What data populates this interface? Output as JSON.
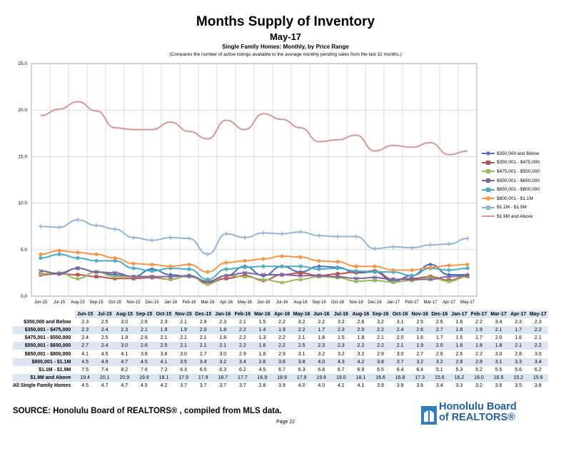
{
  "header": {
    "title": "Months Supply of Inventory",
    "subtitle": "May-17",
    "subtitle2": "Single Family Homes: Monthly, by Price Range",
    "note": "(Compares the number of active listings available to the average monthly pending sales from the last 12 months.)"
  },
  "footer": {
    "source": "SOURCE:  Honolulu Board of REALTORS® , compiled from MLS data.",
    "page": "Page 22",
    "logo_line1": "Honolulu Board",
    "logo_line2": "of REALTORS®"
  },
  "chart_data": {
    "type": "line",
    "title": "Months Supply of Inventory",
    "subtitle": "May-17",
    "ylim": [
      0,
      25
    ],
    "yticks": [
      "0.0",
      "5.0",
      "10.0",
      "15.0",
      "20.0",
      "25.0"
    ],
    "grid": true,
    "legend_position": "right",
    "categories": [
      "Jun-15",
      "Jul-15",
      "Aug-15",
      "Sep-15",
      "Oct-15",
      "Nov-15",
      "Dec-15",
      "Jan-16",
      "Feb-16",
      "Mar-16",
      "Apr-16",
      "May-16",
      "Jun-16",
      "Jul-16",
      "Aug-16",
      "Sep-16",
      "Oct-16",
      "Nov-16",
      "Dec-16",
      "Jan-17",
      "Feb-17",
      "Mar-17",
      "Apr-17",
      "May-17"
    ],
    "series": [
      {
        "name": "$350,000 and Below",
        "label": "$350,000 and Below",
        "color": "#4472c4",
        "marker": "diamond",
        "values": [
          2.3,
          2.5,
          3.0,
          2.6,
          2.3,
          2.1,
          2.9,
          2.3,
          2.1,
          1.5,
          2.2,
          3.2,
          2.2,
          3.2,
          2.6,
          3.2,
          3.1,
          2.5,
          2.6,
          1.6,
          2.2,
          3.4,
          2.3,
          2.3
        ]
      },
      {
        "name": "$350,001 - $475,000",
        "label": "$350,001 - $475,000",
        "color": "#c0504d",
        "marker": "square",
        "values": [
          2.3,
          2.4,
          2.3,
          2.1,
          1.9,
          1.9,
          2.0,
          1.8,
          2.2,
          1.4,
          1.9,
          2.2,
          1.7,
          2.3,
          2.5,
          2.2,
          2.4,
          2.6,
          2.7,
          1.8,
          1.9,
          2.1,
          1.7,
          2.2
        ]
      },
      {
        "name": "$475,001 - $550,000",
        "label": "$475,001 - $550,000",
        "color": "#9bbb59",
        "marker": "triangle",
        "values": [
          2.4,
          2.5,
          1.9,
          2.6,
          2.1,
          2.1,
          2.1,
          1.8,
          2.2,
          1.3,
          2.2,
          2.1,
          1.8,
          1.5,
          1.8,
          2.1,
          2.0,
          1.6,
          1.7,
          1.5,
          1.7,
          2.0,
          1.6,
          2.1
        ]
      },
      {
        "name": "$550,001 - $650,000",
        "label": "$550,001 - $650,000",
        "color": "#8064a2",
        "marker": "x",
        "values": [
          2.7,
          2.4,
          3.0,
          2.6,
          2.5,
          2.1,
          2.1,
          2.1,
          2.2,
          1.6,
          2.2,
          2.5,
          2.3,
          2.3,
          2.2,
          2.2,
          2.1,
          1.9,
          2.0,
          1.8,
          1.8,
          1.8,
          2.1,
          2.2
        ]
      },
      {
        "name": "$650,001 - $800,000",
        "label": "$650,001 - $800,000",
        "color": "#4bacc6",
        "marker": "star",
        "values": [
          4.1,
          4.5,
          4.1,
          3.8,
          3.8,
          3.0,
          2.7,
          3.0,
          2.9,
          1.8,
          2.9,
          3.1,
          3.2,
          3.2,
          3.2,
          2.9,
          3.0,
          2.7,
          2.6,
          2.6,
          2.2,
          3.0,
          2.8,
          3.0
        ]
      },
      {
        "name": "$800,001 - $1.1M",
        "label": "$800,001 - $1.1M",
        "color": "#f79646",
        "marker": "circle",
        "values": [
          4.5,
          4.9,
          4.7,
          4.5,
          4.1,
          3.5,
          3.4,
          3.2,
          3.4,
          2.6,
          3.6,
          3.8,
          4.0,
          4.3,
          4.2,
          3.8,
          3.7,
          3.2,
          3.2,
          2.8,
          2.8,
          3.1,
          3.3,
          3.4
        ]
      },
      {
        "name": "$1.1M - $1.9M",
        "label": "$1.1M - $1.9M",
        "color": "#95b3d7",
        "marker": "plus",
        "values": [
          7.5,
          7.4,
          8.2,
          7.6,
          7.2,
          6.3,
          6.0,
          6.3,
          6.2,
          4.5,
          6.7,
          6.3,
          6.8,
          6.7,
          6.9,
          6.5,
          6.4,
          6.4,
          5.1,
          5.3,
          5.2,
          5.5,
          5.6,
          6.2
        ]
      },
      {
        "name": "$1.9M and Above",
        "label": "$1.9M and Above",
        "color": "#d99694",
        "marker": "none",
        "values": [
          19.4,
          20.1,
          20.9,
          19.9,
          18.1,
          17.9,
          17.9,
          18.7,
          17.7,
          16.9,
          18.9,
          17.9,
          19.6,
          19.0,
          18.1,
          16.6,
          16.8,
          17.3,
          15.6,
          16.2,
          16.0,
          16.5,
          15.2,
          15.6
        ]
      }
    ],
    "table": {
      "headers": [
        "Jun-15",
        "Jul-15",
        "Aug-15",
        "Sep-15",
        "Oct-15",
        "Nov-15",
        "Dec-15",
        "Jan-16",
        "Feb-16",
        "Mar-16",
        "Apr-16",
        "May-16",
        "Jun-16",
        "Jul-16",
        "Aug-16",
        "Sep-16",
        "Oct-16",
        "Nov-16",
        "Dec-16",
        "Jan-17",
        "Feb-17",
        "Mar-17",
        "Apr-17",
        "May-17"
      ],
      "rows": [
        {
          "label": "$350,000 and Below",
          "values": [
            "2.3",
            "2.5",
            "3.0",
            "2.6",
            "2.3",
            "2.1",
            "2.9",
            "2.3",
            "2.1",
            "1.5",
            "2.2",
            "3.2",
            "2.2",
            "3.2",
            "2.6",
            "3.2",
            "3.1",
            "2.5",
            "2.6",
            "1.6",
            "2.2",
            "3.4",
            "2.3",
            "2.3"
          ]
        },
        {
          "label": "$350,001 - $475,000",
          "values": [
            "2.3",
            "2.4",
            "2.3",
            "2.1",
            "1.9",
            "1.9",
            "2.0",
            "1.8",
            "2.2",
            "1.4",
            "1.9",
            "2.2",
            "1.7",
            "2.3",
            "2.5",
            "2.2",
            "2.4",
            "2.6",
            "2.7",
            "1.8",
            "1.9",
            "2.1",
            "1.7",
            "2.2"
          ]
        },
        {
          "label": "$475,001 - $550,000",
          "values": [
            "2.4",
            "2.5",
            "1.9",
            "2.6",
            "2.1",
            "2.1",
            "2.1",
            "1.8",
            "2.2",
            "1.3",
            "2.2",
            "2.1",
            "1.8",
            "1.5",
            "1.8",
            "2.1",
            "2.0",
            "1.6",
            "1.7",
            "1.5",
            "1.7",
            "2.0",
            "1.6",
            "2.1"
          ]
        },
        {
          "label": "$550,001 - $650,000",
          "values": [
            "2.7",
            "2.4",
            "3.0",
            "2.6",
            "2.5",
            "2.1",
            "2.1",
            "2.1",
            "2.2",
            "1.6",
            "2.2",
            "2.5",
            "2.3",
            "2.3",
            "2.2",
            "2.2",
            "2.1",
            "1.9",
            "2.0",
            "1.8",
            "1.8",
            "1.8",
            "2.1",
            "2.2"
          ]
        },
        {
          "label": "$650,001 - $800,000",
          "values": [
            "4.1",
            "4.5",
            "4.1",
            "3.8",
            "3.8",
            "3.0",
            "2.7",
            "3.0",
            "2.9",
            "1.8",
            "2.9",
            "3.1",
            "3.2",
            "3.2",
            "3.2",
            "2.9",
            "3.0",
            "2.7",
            "2.6",
            "2.6",
            "2.2",
            "3.0",
            "2.8",
            "3.0"
          ]
        },
        {
          "label": "$800,001 - $1.1M",
          "values": [
            "4.5",
            "4.9",
            "4.7",
            "4.5",
            "4.1",
            "3.5",
            "3.4",
            "3.2",
            "3.4",
            "2.6",
            "3.6",
            "3.8",
            "4.0",
            "4.3",
            "4.2",
            "3.8",
            "3.7",
            "3.2",
            "3.2",
            "2.8",
            "2.8",
            "3.1",
            "3.3",
            "3.4"
          ]
        },
        {
          "label": "$1.1M - $1.9M",
          "values": [
            "7.5",
            "7.4",
            "8.2",
            "7.6",
            "7.2",
            "6.3",
            "6.0",
            "6.3",
            "6.2",
            "4.5",
            "6.7",
            "6.3",
            "6.8",
            "6.7",
            "6.9",
            "6.5",
            "6.4",
            "6.4",
            "5.1",
            "5.3",
            "5.2",
            "5.5",
            "5.6",
            "6.2"
          ]
        },
        {
          "label": "$1.9M and Above",
          "values": [
            "19.4",
            "20.1",
            "20.9",
            "19.9",
            "18.1",
            "17.9",
            "17.9",
            "18.7",
            "17.7",
            "16.9",
            "18.9",
            "17.9",
            "19.6",
            "19.0",
            "18.1",
            "16.6",
            "16.8",
            "17.3",
            "15.6",
            "16.2",
            "16.0",
            "16.5",
            "15.2",
            "15.6"
          ]
        },
        {
          "label": "All Single Family Homes",
          "values": [
            "4.5",
            "4.7",
            "4.7",
            "4.5",
            "4.2",
            "3.7",
            "3.7",
            "3.7",
            "3.7",
            "2.8",
            "3.9",
            "4.0",
            "4.0",
            "4.1",
            "4.1",
            "3.9",
            "3.9",
            "3.6",
            "3.4",
            "3.3",
            "3.2",
            "3.6",
            "3.5",
            "3.8"
          ]
        }
      ]
    }
  }
}
